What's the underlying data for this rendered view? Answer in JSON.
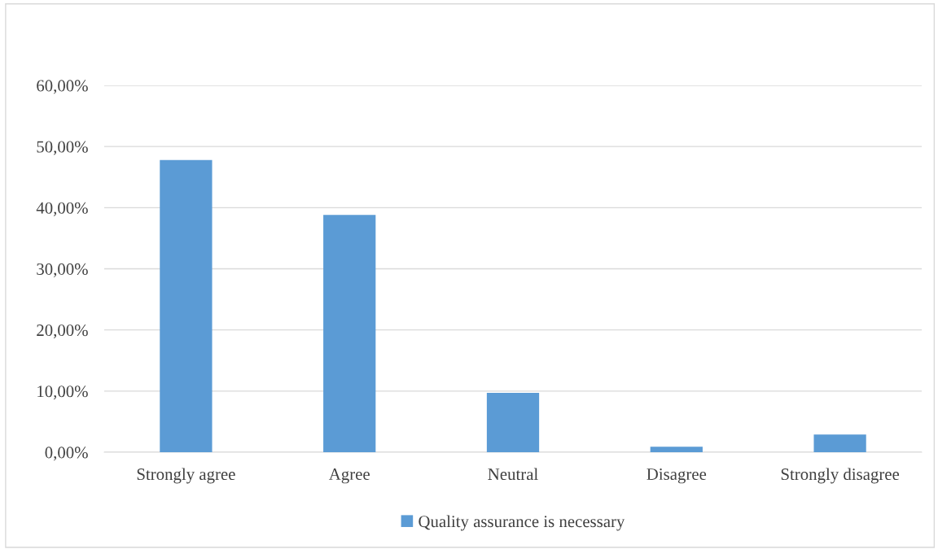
{
  "chart_data": {
    "type": "bar",
    "categories": [
      "Strongly agree",
      "Agree",
      "Neutral",
      "Disagree",
      "Strongly disagree"
    ],
    "series": [
      {
        "name": "Quality assurance is necessary",
        "color": "#5b9bd5",
        "values": [
          47.8,
          38.8,
          9.7,
          0.9,
          2.9
        ]
      }
    ],
    "ylim": [
      0,
      60
    ],
    "yticks": [
      {
        "value": 0,
        "label": "0,00%"
      },
      {
        "value": 10,
        "label": "10,00%"
      },
      {
        "value": 20,
        "label": "20,00%"
      },
      {
        "value": 30,
        "label": "30,00%"
      },
      {
        "value": 40,
        "label": "40,00%"
      },
      {
        "value": 50,
        "label": "50,00%"
      },
      {
        "value": 60,
        "label": "60,00%"
      }
    ],
    "grid": "y",
    "legend": "bottom"
  }
}
